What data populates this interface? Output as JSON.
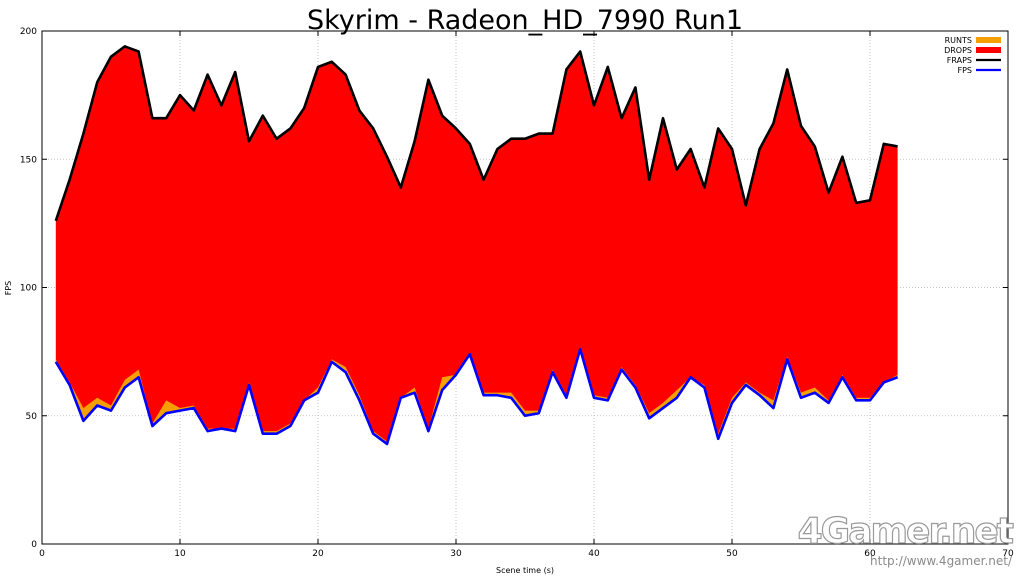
{
  "chart_data": {
    "type": "area",
    "title": "Skyrim - Radeon_HD_7990 Run1",
    "xlabel": "Scene time (s)",
    "ylabel": "FPS",
    "xlim": [
      0,
      70
    ],
    "ylim": [
      0,
      200
    ],
    "xticks": [
      0,
      10,
      20,
      30,
      40,
      50,
      60,
      70
    ],
    "yticks": [
      0,
      50,
      100,
      150,
      200
    ],
    "grid": true,
    "legend_position": "top-right",
    "x": [
      1,
      2,
      3,
      4,
      5,
      6,
      7,
      8,
      9,
      10,
      11,
      12,
      13,
      14,
      15,
      16,
      17,
      18,
      19,
      20,
      21,
      22,
      23,
      24,
      25,
      26,
      27,
      28,
      29,
      30,
      31,
      32,
      33,
      34,
      35,
      36,
      37,
      38,
      39,
      40,
      41,
      42,
      43,
      44,
      45,
      46,
      47,
      48,
      49,
      50,
      51,
      52,
      53,
      54,
      55,
      56,
      57,
      58,
      59,
      60,
      61,
      62
    ],
    "series": [
      {
        "name": "RUNTS",
        "color": "#f5a000",
        "values": [
          72,
          63,
          53,
          57,
          54,
          64,
          68,
          47,
          56,
          53,
          54,
          45,
          45,
          45,
          63,
          44,
          44,
          47,
          56,
          61,
          72,
          69,
          58,
          44,
          40,
          57,
          61,
          45,
          65,
          66,
          74,
          59,
          59,
          59,
          52,
          52,
          68,
          58,
          76,
          58,
          57,
          69,
          62,
          51,
          55,
          60,
          65,
          62,
          43,
          57,
          63,
          59,
          56,
          73,
          59,
          61,
          56,
          66,
          57,
          57,
          63,
          66
        ]
      },
      {
        "name": "DROPS",
        "color": "#ff0000",
        "values": [
          126,
          142,
          160,
          180,
          190,
          194,
          192,
          166,
          166,
          175,
          169,
          183,
          171,
          184,
          157,
          167,
          158,
          162,
          170,
          186,
          188,
          183,
          169,
          162,
          151,
          139,
          157,
          181,
          167,
          162,
          156,
          142,
          154,
          158,
          158,
          160,
          160,
          185,
          192,
          171,
          186,
          166,
          178,
          142,
          166,
          146,
          154,
          139,
          162,
          154,
          132,
          154,
          164,
          185,
          163,
          155,
          137,
          151,
          133,
          134,
          156,
          155
        ]
      },
      {
        "name": "FRAPS",
        "color": "#000000",
        "values": [
          126,
          142,
          160,
          180,
          190,
          194,
          192,
          166,
          166,
          175,
          169,
          183,
          171,
          184,
          157,
          167,
          158,
          162,
          170,
          186,
          188,
          183,
          169,
          162,
          151,
          139,
          157,
          181,
          167,
          162,
          156,
          142,
          154,
          158,
          158,
          160,
          160,
          185,
          192,
          171,
          186,
          166,
          178,
          142,
          166,
          146,
          154,
          139,
          162,
          154,
          132,
          154,
          164,
          185,
          163,
          155,
          137,
          151,
          133,
          134,
          156,
          155
        ]
      },
      {
        "name": "FPS",
        "color": "#0000ff",
        "values": [
          71,
          62,
          48,
          54,
          52,
          61,
          65,
          46,
          51,
          52,
          53,
          44,
          45,
          44,
          62,
          43,
          43,
          46,
          56,
          59,
          71,
          67,
          56,
          43,
          39,
          57,
          59,
          44,
          60,
          66,
          74,
          58,
          58,
          57,
          50,
          51,
          67,
          57,
          76,
          57,
          56,
          68,
          61,
          49,
          53,
          57,
          65,
          61,
          41,
          55,
          62,
          58,
          53,
          72,
          57,
          59,
          55,
          65,
          56,
          56,
          63,
          65
        ]
      }
    ]
  },
  "watermark": {
    "logo": "4Gamer.net",
    "url": "http://www.4gamer.net/"
  }
}
